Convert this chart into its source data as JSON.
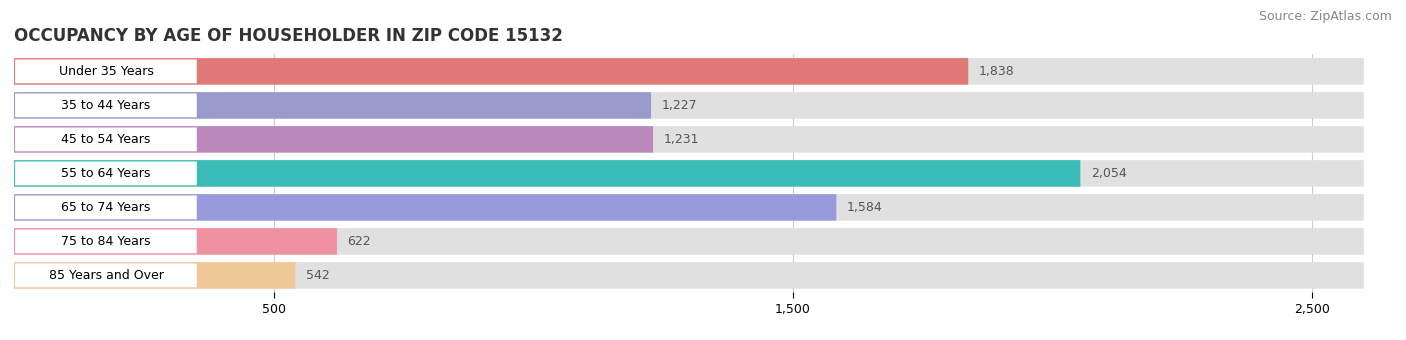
{
  "title": "OCCUPANCY BY AGE OF HOUSEHOLDER IN ZIP CODE 15132",
  "source": "Source: ZipAtlas.com",
  "categories": [
    "Under 35 Years",
    "35 to 44 Years",
    "45 to 54 Years",
    "55 to 64 Years",
    "65 to 74 Years",
    "75 to 84 Years",
    "85 Years and Over"
  ],
  "values": [
    1838,
    1227,
    1231,
    2054,
    1584,
    622,
    542
  ],
  "bar_colors": [
    "#E07878",
    "#9999CC",
    "#BB88BB",
    "#3BBCB8",
    "#9999DD",
    "#F090A0",
    "#F0C898"
  ],
  "bar_bg_color": "#E0E0E0",
  "xlim_max": 2600,
  "xticks": [
    500,
    1500,
    2500
  ],
  "value_color": "#555555",
  "title_fontsize": 12,
  "source_fontsize": 9,
  "label_fontsize": 9,
  "tick_fontsize": 9,
  "background_color": "#FFFFFF",
  "grid_color": "#CCCCCC"
}
